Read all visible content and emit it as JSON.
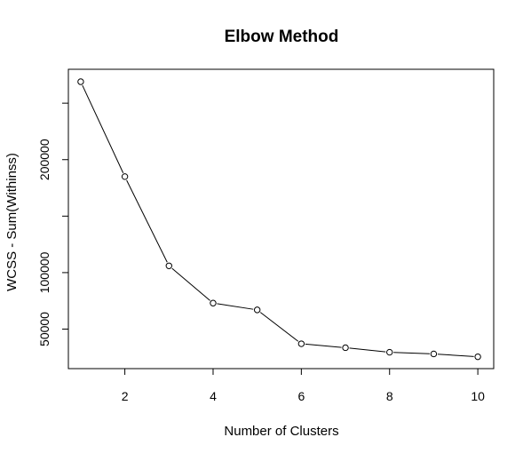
{
  "chart_data": {
    "type": "line",
    "title": "Elbow Method",
    "xlabel": "Number of Clusters",
    "ylabel": "WCSS - Sum(Withinss)",
    "x": [
      1,
      2,
      3,
      4,
      5,
      6,
      7,
      8,
      9,
      10
    ],
    "series": [
      {
        "values": [
          269000,
          185000,
          106000,
          73000,
          67000,
          37000,
          33500,
          29500,
          28000,
          25500
        ]
      }
    ],
    "xlim": [
      0.72,
      10.36
    ],
    "ylim": [
      15000,
      280000
    ],
    "x_ticks": [
      2,
      4,
      6,
      8,
      10
    ],
    "x_tick_labels": [
      "2",
      "4",
      "6",
      "8",
      "10"
    ],
    "y_ticks": [
      50000,
      100000,
      150000,
      200000,
      250000
    ],
    "y_tick_labels": [
      "50000",
      "100000",
      "",
      "200000",
      ""
    ],
    "marker": "open-circle",
    "line_color": "#000000",
    "grid": false,
    "legend": "none"
  }
}
